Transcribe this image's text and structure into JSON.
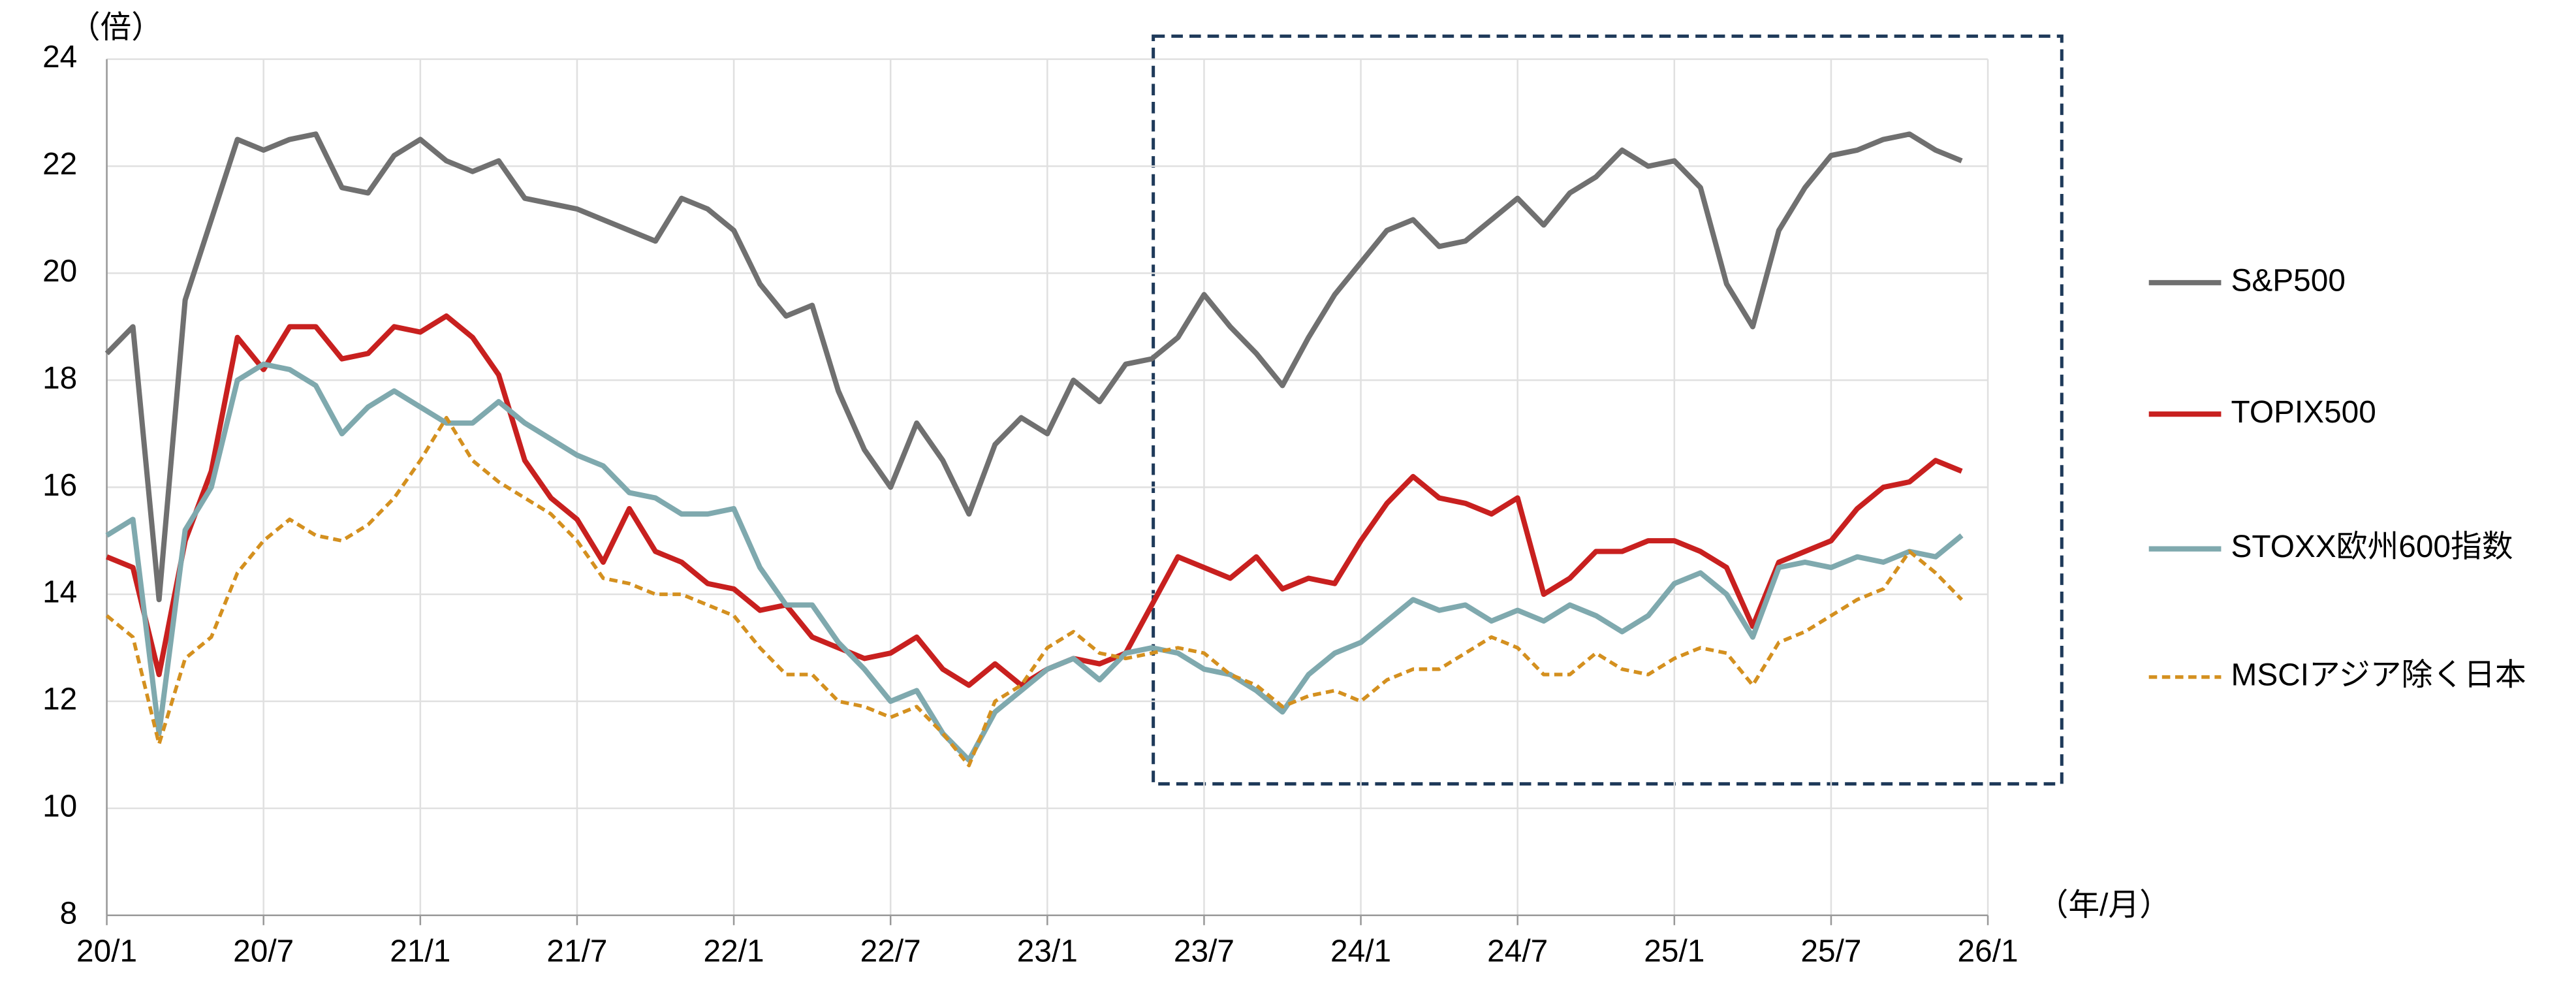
{
  "chart_data": {
    "type": "line",
    "y_unit": "（倍）",
    "x_unit": "（年/月）",
    "x": [
      "20/1",
      "20/2",
      "20/3",
      "20/4",
      "20/5",
      "20/6",
      "20/7",
      "20/8",
      "20/9",
      "20/10",
      "20/11",
      "20/12",
      "21/1",
      "21/2",
      "21/3",
      "21/4",
      "21/5",
      "21/6",
      "21/7",
      "21/8",
      "21/9",
      "21/10",
      "21/11",
      "21/12",
      "22/1",
      "22/2",
      "22/3",
      "22/4",
      "22/5",
      "22/6",
      "22/7",
      "22/8",
      "22/9",
      "22/10",
      "22/11",
      "22/12",
      "23/1",
      "23/2",
      "23/3",
      "23/4",
      "23/5",
      "23/6",
      "23/7",
      "23/8",
      "23/9",
      "23/10",
      "23/11",
      "23/12",
      "24/1",
      "24/2",
      "24/3",
      "24/4",
      "24/5",
      "24/6",
      "24/7",
      "24/8",
      "24/9",
      "24/10",
      "24/11",
      "24/12",
      "25/1",
      "25/2",
      "25/3",
      "25/4",
      "25/5",
      "25/6",
      "25/7",
      "25/8",
      "25/9",
      "25/10",
      "25/11",
      "25/12"
    ],
    "xlim": [
      "20/1",
      "26/1"
    ],
    "xticks": [
      "20/1",
      "20/7",
      "21/1",
      "21/7",
      "22/1",
      "22/7",
      "23/1",
      "23/7",
      "24/1",
      "24/7",
      "25/1",
      "25/7",
      "26/1"
    ],
    "ylim": [
      8,
      24
    ],
    "yticks": [
      8,
      10,
      12,
      14,
      16,
      18,
      20,
      22,
      24
    ],
    "grid": true,
    "legend": "right",
    "series": [
      {
        "name": "S&P500",
        "color": "#707070",
        "dashed": false,
        "values": [
          18.5,
          19.0,
          13.9,
          19.5,
          21.0,
          22.5,
          22.3,
          22.5,
          22.6,
          21.6,
          21.5,
          22.2,
          22.5,
          22.1,
          21.9,
          22.1,
          21.4,
          21.3,
          21.2,
          21.0,
          20.8,
          20.6,
          21.4,
          21.2,
          20.8,
          19.8,
          19.2,
          19.4,
          17.8,
          16.7,
          16.0,
          17.2,
          16.5,
          15.5,
          16.8,
          17.3,
          17.0,
          18.0,
          17.6,
          18.3,
          18.4,
          18.8,
          19.6,
          19.0,
          18.5,
          17.9,
          18.8,
          19.6,
          20.2,
          20.8,
          21.0,
          20.5,
          20.6,
          21.0,
          21.4,
          20.9,
          21.5,
          21.8,
          22.3,
          22.0,
          22.1,
          21.6,
          19.8,
          19.0,
          20.8,
          21.6,
          22.2,
          22.3,
          22.5,
          22.6,
          22.3,
          22.1
        ]
      },
      {
        "name": "TOPIX500",
        "color": "#c8201f",
        "dashed": false,
        "values": [
          14.7,
          14.5,
          12.5,
          15.0,
          16.3,
          18.8,
          18.2,
          19.0,
          19.0,
          18.4,
          18.5,
          19.0,
          18.9,
          19.2,
          18.8,
          18.1,
          16.5,
          15.8,
          15.4,
          14.6,
          15.6,
          14.8,
          14.6,
          14.2,
          14.1,
          13.7,
          13.8,
          13.2,
          13.0,
          12.8,
          12.9,
          13.2,
          12.6,
          12.3,
          12.7,
          12.3,
          12.6,
          12.8,
          12.7,
          12.9,
          13.8,
          14.7,
          14.5,
          14.3,
          14.7,
          14.1,
          14.3,
          14.2,
          15.0,
          15.7,
          16.2,
          15.8,
          15.7,
          15.5,
          15.8,
          14.0,
          14.3,
          14.8,
          14.8,
          15.0,
          15.0,
          14.8,
          14.5,
          13.4,
          14.6,
          14.8,
          15.0,
          15.6,
          16.0,
          16.1,
          16.5,
          16.3
        ]
      },
      {
        "name": "STOXX欧州600指数",
        "color": "#7fa9ae",
        "dashed": false,
        "values": [
          15.1,
          15.4,
          11.4,
          15.2,
          16.0,
          18.0,
          18.3,
          18.2,
          17.9,
          17.0,
          17.5,
          17.8,
          17.5,
          17.2,
          17.2,
          17.6,
          17.2,
          16.9,
          16.6,
          16.4,
          15.9,
          15.8,
          15.5,
          15.5,
          15.6,
          14.5,
          13.8,
          13.8,
          13.1,
          12.6,
          12.0,
          12.2,
          11.4,
          10.9,
          11.8,
          12.2,
          12.6,
          12.8,
          12.4,
          12.9,
          13.0,
          12.9,
          12.6,
          12.5,
          12.2,
          11.8,
          12.5,
          12.9,
          13.1,
          13.5,
          13.9,
          13.7,
          13.8,
          13.5,
          13.7,
          13.5,
          13.8,
          13.6,
          13.3,
          13.6,
          14.2,
          14.4,
          14.0,
          13.2,
          14.5,
          14.6,
          14.5,
          14.7,
          14.6,
          14.8,
          14.7,
          15.1
        ]
      },
      {
        "name": "MSCIアジア除く日本",
        "color": "#d4901f",
        "dashed": true,
        "values": [
          13.6,
          13.2,
          11.2,
          12.8,
          13.2,
          14.4,
          15.0,
          15.4,
          15.1,
          15.0,
          15.3,
          15.8,
          16.5,
          17.3,
          16.5,
          16.1,
          15.8,
          15.5,
          15.0,
          14.3,
          14.2,
          14.0,
          14.0,
          13.8,
          13.6,
          13.0,
          12.5,
          12.5,
          12.0,
          11.9,
          11.7,
          11.9,
          11.4,
          10.8,
          12.0,
          12.3,
          13.0,
          13.3,
          12.9,
          12.8,
          12.9,
          13.0,
          12.9,
          12.5,
          12.3,
          11.9,
          12.1,
          12.2,
          12.0,
          12.4,
          12.6,
          12.6,
          12.9,
          13.2,
          13.0,
          12.5,
          12.5,
          12.9,
          12.6,
          12.5,
          12.8,
          13.0,
          12.9,
          12.3,
          13.1,
          13.3,
          13.6,
          13.9,
          14.1,
          14.8,
          14.4,
          13.9
        ]
      }
    ]
  }
}
